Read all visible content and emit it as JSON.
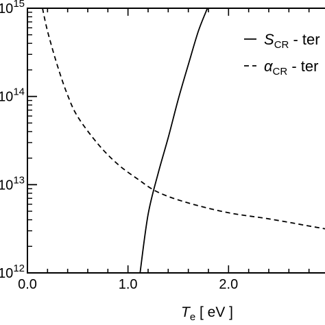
{
  "chart_data": {
    "type": "line",
    "xlabel": {
      "symbol": "T",
      "subscript": "e",
      "unit": " [ eV ]"
    },
    "ylabel": "",
    "xlim": [
      0.0,
      3.0
    ],
    "ylim": [
      1000000000000.0,
      1000000000000000.0
    ],
    "yscale": "log",
    "grid": false,
    "legend_placement": "top-right",
    "x_ticks": [
      {
        "value": 0.0,
        "label": "0.0"
      },
      {
        "value": 1.0,
        "label": "1.0"
      },
      {
        "value": 2.0,
        "label": "2.0"
      }
    ],
    "y_ticks": [
      {
        "value": 1000000000000.0,
        "base": "10",
        "exp": "12"
      },
      {
        "value": 10000000000000.0,
        "base": "10",
        "exp": "13"
      },
      {
        "value": 100000000000000.0,
        "base": "10",
        "exp": "14"
      },
      {
        "value": 1000000000000000.0,
        "base": "10",
        "exp": "15"
      }
    ],
    "series": [
      {
        "symbol": "S",
        "subscript": "CR",
        "suffix": " - ter",
        "style": "solid",
        "x": [
          1.12,
          1.2,
          1.3,
          1.4,
          1.5,
          1.6,
          1.7,
          1.79
        ],
        "y": [
          1000000000000.0,
          4600000000000.0,
          13500000000000.0,
          34000000000000.0,
          93000000000000.0,
          230000000000000.0,
          550000000000000.0,
          1000000000000000.0
        ]
      },
      {
        "symbol": "α",
        "subscript": "CR",
        "suffix": " - ter",
        "style": "dashed",
        "x": [
          0.15,
          0.2,
          0.3,
          0.4,
          0.5,
          0.7,
          0.9,
          1.1,
          1.3,
          1.6,
          2.0,
          2.4,
          2.8,
          3.0
        ],
        "y": [
          1000000000000000.0,
          550000000000000.0,
          220000000000000.0,
          103000000000000.0,
          59000000000000.0,
          29000000000000.0,
          17000000000000.0,
          11500000000000.0,
          8200000000000.0,
          6200000000000.0,
          4800000000000.0,
          4100000000000.0,
          3400000000000.0,
          3100000000000.0
        ]
      }
    ]
  }
}
